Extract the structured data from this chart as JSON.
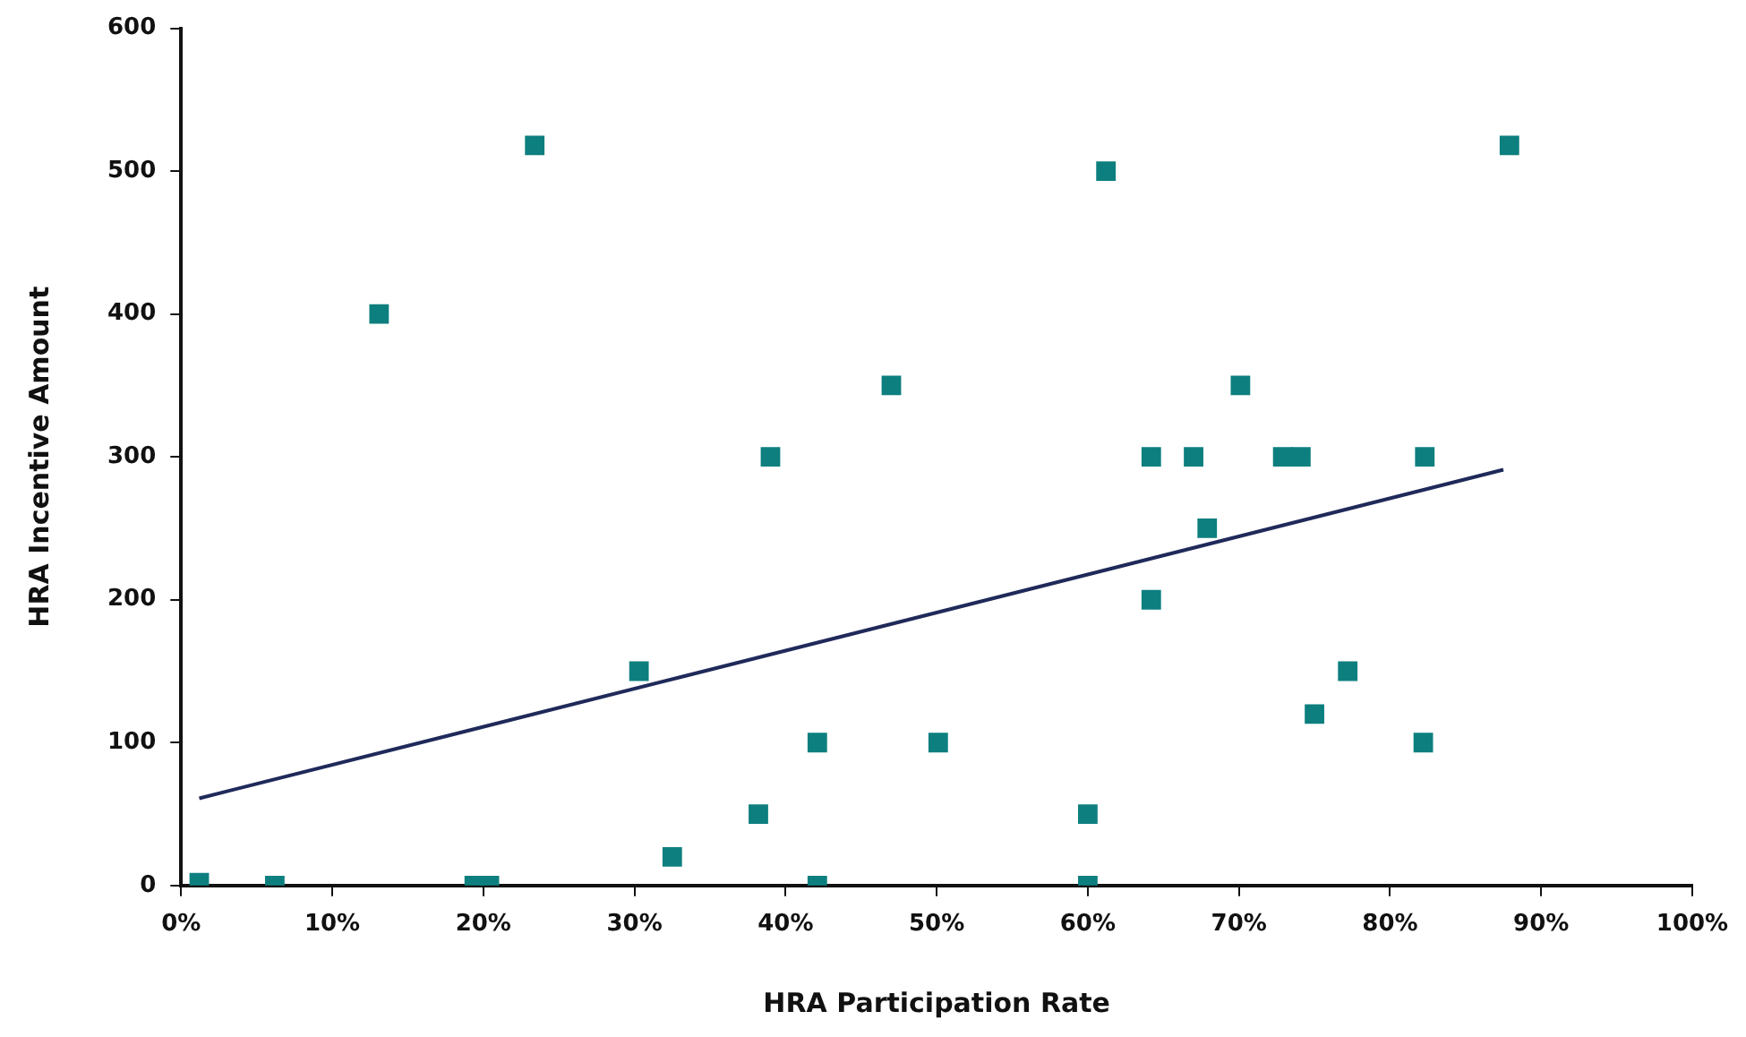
{
  "chart_data": {
    "type": "scatter",
    "xlabel": "HRA Participation Rate",
    "ylabel": "HRA Incentive Amount",
    "xlim": [
      0,
      100
    ],
    "ylim": [
      0,
      600
    ],
    "xticks": [
      {
        "value": 0,
        "label": "0%"
      },
      {
        "value": 10,
        "label": "10%"
      },
      {
        "value": 20,
        "label": "20%"
      },
      {
        "value": 30,
        "label": "30%"
      },
      {
        "value": 40,
        "label": "40%"
      },
      {
        "value": 50,
        "label": "50%"
      },
      {
        "value": 60,
        "label": "60%"
      },
      {
        "value": 70,
        "label": "70%"
      },
      {
        "value": 80,
        "label": "80%"
      },
      {
        "value": 90,
        "label": "90%"
      },
      {
        "value": 100,
        "label": "100%"
      }
    ],
    "yticks": [
      0,
      100,
      200,
      300,
      400,
      500,
      600
    ],
    "grid": false,
    "legend": false,
    "series": [
      {
        "marker": "square",
        "color": "#0e7f7f",
        "x": [
          1.2,
          6.2,
          13.1,
          19.4,
          20.4,
          23.4,
          30.3,
          32.5,
          38.2,
          39,
          42.1,
          42.1,
          47,
          50.1,
          60,
          60,
          61.2,
          64.2,
          64.2,
          67,
          67.9,
          70.1,
          72.9,
          74.1,
          75,
          77.2,
          82.2,
          82.3,
          87.9
        ],
        "values": [
          2,
          0,
          400,
          0,
          0,
          518,
          150,
          20,
          50,
          300,
          100,
          0,
          350,
          100,
          50,
          0,
          500,
          300,
          200,
          300,
          250,
          350,
          300,
          300,
          120,
          150,
          100,
          300,
          518
        ]
      },
      {
        "type": "line",
        "marker": "none",
        "color": "#1f2a5a",
        "x": [
          1.2,
          87.5
        ],
        "values": [
          61,
          291
        ]
      }
    ]
  }
}
